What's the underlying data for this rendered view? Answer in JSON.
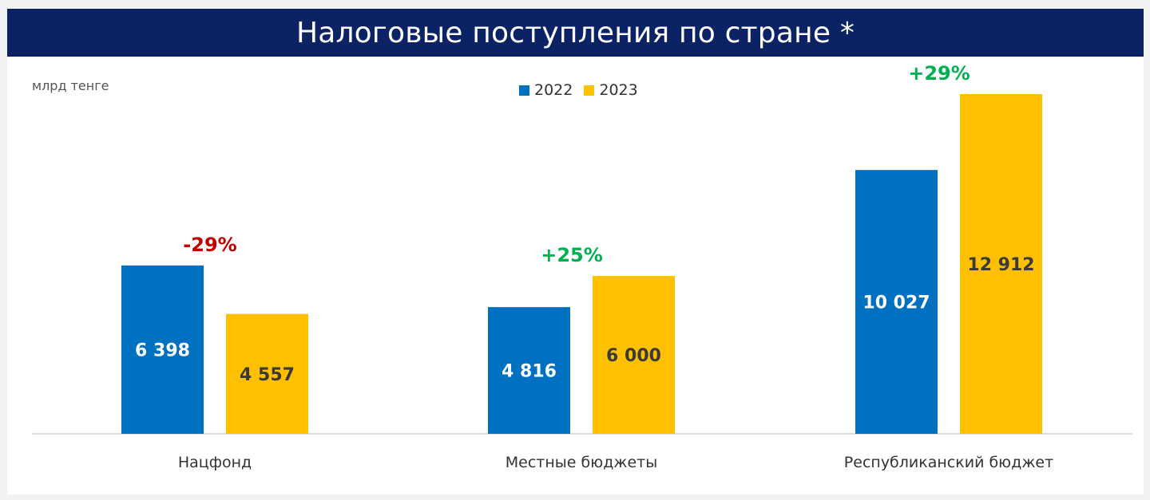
{
  "title": "Налоговые поступления по стране *",
  "unit": "млрд тенге",
  "colors": {
    "header_bg": "#0b2265",
    "series_2022": "#0070c0",
    "series_2023": "#ffc000",
    "positive": "#00b050",
    "negative": "#c00000"
  },
  "chart_data": {
    "type": "bar",
    "categories": [
      "Нацфонд",
      "Местные бюджеты",
      "Республиканский бюджет"
    ],
    "series": [
      {
        "name": "2022",
        "values": [
          6398,
          4816,
          10027
        ],
        "labels": [
          "6 398",
          "4 816",
          "10 027"
        ]
      },
      {
        "name": "2023",
        "values": [
          4557,
          6000,
          12912
        ],
        "labels": [
          "4 557",
          "6 000",
          "12 912"
        ]
      }
    ],
    "changes": [
      "-29%",
      "+25%",
      "+29%"
    ],
    "ylabel": "млрд тенге",
    "ylim": [
      0,
      12912
    ],
    "legend": "top-center",
    "grid": false
  }
}
